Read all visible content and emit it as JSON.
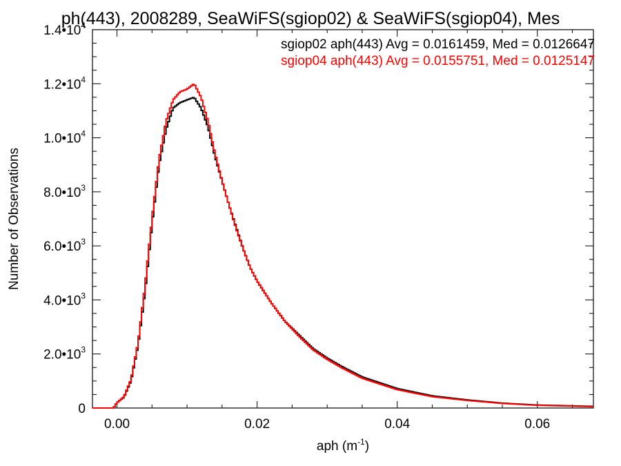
{
  "chart_data": {
    "type": "line",
    "title": "ph(443), 2008289, SeaWiFS(sgiop02) & SeaWiFS(sgiop04), Mes",
    "xlabel": "aph (m",
    "xlabel_sup": "-1",
    "xlabel_end": ")",
    "ylabel": "Number of Observations",
    "xlim": [
      -0.0035,
      0.068
    ],
    "ylim": [
      0,
      14000
    ],
    "grid": false,
    "legend_position": "top-right",
    "x_ticks": [
      {
        "value": 0.0,
        "label": "0.00"
      },
      {
        "value": 0.02,
        "label": "0.02"
      },
      {
        "value": 0.04,
        "label": "0.04"
      },
      {
        "value": 0.06,
        "label": "0.06"
      }
    ],
    "y_ticks": [
      {
        "value": 0,
        "mant": "0",
        "exp": ""
      },
      {
        "value": 2000,
        "mant": "2.0•10",
        "exp": "3"
      },
      {
        "value": 4000,
        "mant": "4.0•10",
        "exp": "3"
      },
      {
        "value": 6000,
        "mant": "6.0•10",
        "exp": "3"
      },
      {
        "value": 8000,
        "mant": "8.0•10",
        "exp": "3"
      },
      {
        "value": 10000,
        "mant": "1.0•10",
        "exp": "4"
      },
      {
        "value": 12000,
        "mant": "1.2•10",
        "exp": "4"
      },
      {
        "value": 14000,
        "mant": "1.4•10",
        "exp": "4"
      }
    ],
    "legend": [
      "sgiop02 aph(443) Avg = 0.0161459, Med = 0.0126647",
      "sgiop04 aph(443) Avg = 0.0155751, Med = 0.0125147"
    ],
    "series": [
      {
        "name": "sgiop02",
        "color": "#000000",
        "points": [
          [
            -0.0035,
            0
          ],
          [
            -0.0005,
            0
          ],
          [
            0,
            200
          ],
          [
            0.001,
            400
          ],
          [
            0.002,
            1000
          ],
          [
            0.003,
            2300
          ],
          [
            0.004,
            4300
          ],
          [
            0.005,
            6800
          ],
          [
            0.006,
            9000
          ],
          [
            0.007,
            10300
          ],
          [
            0.008,
            11100
          ],
          [
            0.009,
            11300
          ],
          [
            0.01,
            11400
          ],
          [
            0.011,
            11500
          ],
          [
            0.012,
            11100
          ],
          [
            0.013,
            10400
          ],
          [
            0.014,
            9300
          ],
          [
            0.015,
            8400
          ],
          [
            0.016,
            7500
          ],
          [
            0.017,
            6700
          ],
          [
            0.018,
            5900
          ],
          [
            0.019,
            5200
          ],
          [
            0.02,
            4700
          ],
          [
            0.022,
            3900
          ],
          [
            0.024,
            3200
          ],
          [
            0.026,
            2700
          ],
          [
            0.028,
            2200
          ],
          [
            0.03,
            1850
          ],
          [
            0.032,
            1550
          ],
          [
            0.035,
            1150
          ],
          [
            0.04,
            720
          ],
          [
            0.045,
            450
          ],
          [
            0.05,
            300
          ],
          [
            0.055,
            180
          ],
          [
            0.06,
            110
          ],
          [
            0.065,
            80
          ],
          [
            0.068,
            60
          ]
        ]
      },
      {
        "name": "sgiop04",
        "color": "#ff0000",
        "points": [
          [
            -0.0035,
            0
          ],
          [
            -0.0005,
            0
          ],
          [
            0,
            200
          ],
          [
            0.001,
            420
          ],
          [
            0.002,
            1050
          ],
          [
            0.003,
            2400
          ],
          [
            0.004,
            4500
          ],
          [
            0.005,
            7000
          ],
          [
            0.006,
            9200
          ],
          [
            0.007,
            10600
          ],
          [
            0.008,
            11400
          ],
          [
            0.009,
            11700
          ],
          [
            0.01,
            11800
          ],
          [
            0.011,
            12000
          ],
          [
            0.012,
            11500
          ],
          [
            0.013,
            10600
          ],
          [
            0.014,
            9400
          ],
          [
            0.015,
            8400
          ],
          [
            0.016,
            7500
          ],
          [
            0.017,
            6650
          ],
          [
            0.018,
            5900
          ],
          [
            0.019,
            5200
          ],
          [
            0.02,
            4700
          ],
          [
            0.022,
            3900
          ],
          [
            0.024,
            3200
          ],
          [
            0.026,
            2650
          ],
          [
            0.028,
            2150
          ],
          [
            0.03,
            1800
          ],
          [
            0.032,
            1500
          ],
          [
            0.035,
            1100
          ],
          [
            0.04,
            680
          ],
          [
            0.045,
            420
          ],
          [
            0.05,
            280
          ],
          [
            0.055,
            170
          ],
          [
            0.06,
            100
          ],
          [
            0.065,
            70
          ],
          [
            0.068,
            50
          ]
        ]
      }
    ]
  }
}
